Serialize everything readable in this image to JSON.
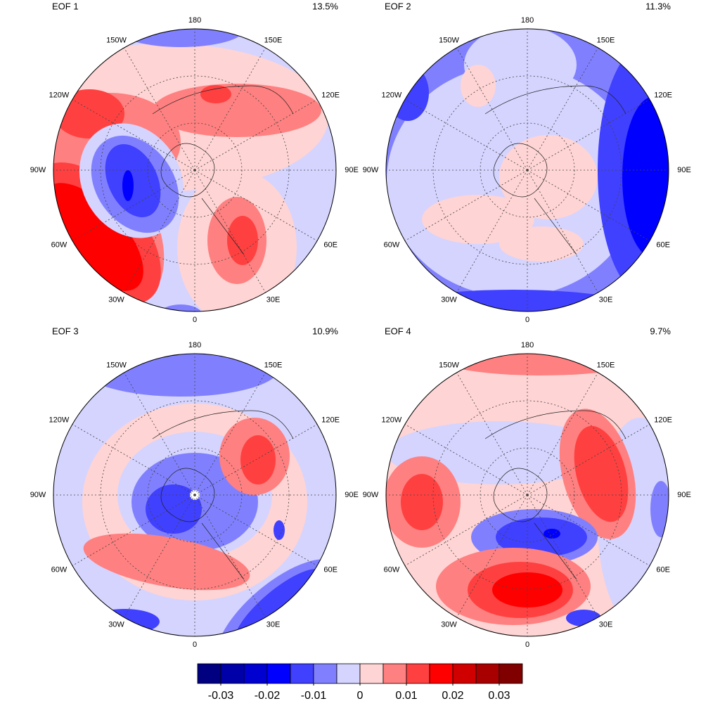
{
  "panels": [
    {
      "title": "EOF 1",
      "variance": "13.5%"
    },
    {
      "title": "EOF 2",
      "variance": "11.3%"
    },
    {
      "title": "EOF 3",
      "variance": "10.9%"
    },
    {
      "title": "EOF 4",
      "variance": "9.7%"
    }
  ],
  "longitude_labels": [
    "0",
    "30E",
    "60E",
    "90E",
    "120E",
    "150E",
    "180",
    "150W",
    "120W",
    "90W",
    "60W",
    "30W"
  ],
  "colorbar": {
    "colors": [
      "#000080",
      "#0000a8",
      "#0000d0",
      "#0000ff",
      "#4040ff",
      "#8080ff",
      "#d4d4ff",
      "#ffd4d4",
      "#ff8080",
      "#ff4040",
      "#ff0000",
      "#d00000",
      "#a80000",
      "#800000"
    ],
    "lim": [
      -0.035,
      0.035
    ],
    "ticks": [
      -0.03,
      -0.02,
      -0.01,
      0,
      0.01,
      0.02,
      0.03
    ]
  }
}
